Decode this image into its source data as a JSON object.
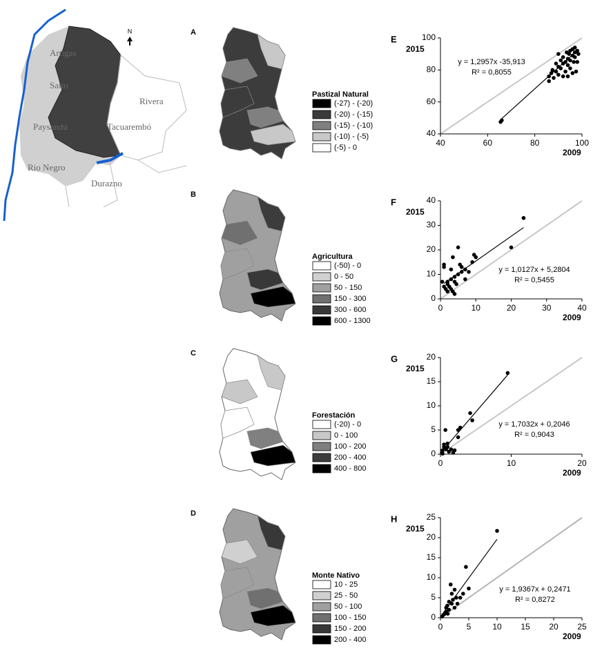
{
  "location_map": {
    "labels": [
      "Artigas",
      "Salto",
      "Paysandú",
      "Tacuarembó",
      "Rivera",
      "Rio Negro",
      "Durazno"
    ],
    "north": "N"
  },
  "maps": [
    {
      "letter": "A",
      "legend_title": "Pastizal Natural",
      "classes": [
        {
          "label": "(-27) - (-20)",
          "color": "#000000"
        },
        {
          "label": "(-20) - (-15)",
          "color": "#3c3c3c"
        },
        {
          "label": "(-15) - (-10)",
          "color": "#808080"
        },
        {
          "label": "(-10) - (-5)",
          "color": "#c8c8c8"
        },
        {
          "label": "(-5) - 0",
          "color": "#ffffff"
        }
      ]
    },
    {
      "letter": "B",
      "legend_title": "Agricultura",
      "classes": [
        {
          "label": "(-50) - 0",
          "color": "#ffffff"
        },
        {
          "label": "0 - 50",
          "color": "#d0d0d0"
        },
        {
          "label": "50 - 150",
          "color": "#a0a0a0"
        },
        {
          "label": "150 - 300",
          "color": "#707070"
        },
        {
          "label": "300 - 600",
          "color": "#383838"
        },
        {
          "label": "600 - 1300",
          "color": "#000000"
        }
      ]
    },
    {
      "letter": "C",
      "legend_title": "Forestación",
      "classes": [
        {
          "label": "(-20) - 0",
          "color": "#ffffff"
        },
        {
          "label": "0 - 100",
          "color": "#c8c8c8"
        },
        {
          "label": "100 - 200",
          "color": "#808080"
        },
        {
          "label": "200 - 400",
          "color": "#3c3c3c"
        },
        {
          "label": "400 - 800",
          "color": "#000000"
        }
      ]
    },
    {
      "letter": "D",
      "legend_title": "Monte Nativo",
      "classes": [
        {
          "label": "10 - 25",
          "color": "#ffffff"
        },
        {
          "label": "25 - 50",
          "color": "#d0d0d0"
        },
        {
          "label": "50 - 100",
          "color": "#a0a0a0"
        },
        {
          "label": "100 - 150",
          "color": "#707070"
        },
        {
          "label": "150 - 200",
          "color": "#383838"
        },
        {
          "label": "200 - 400",
          "color": "#000000"
        }
      ]
    }
  ],
  "chart_data": [
    {
      "type": "scatter",
      "letter": "E",
      "x_label": "2009",
      "y_label": "2015",
      "equation": "y = 1,2957x  -35,913",
      "r2": "R² = 0,8055",
      "x": [
        65.5,
        66,
        86,
        86,
        87,
        87.5,
        88,
        89,
        89,
        90,
        90,
        91,
        91,
        92,
        92,
        93,
        93,
        93.5,
        94,
        94,
        94.5,
        95,
        95,
        95,
        96,
        96,
        96.5,
        97,
        97,
        97,
        97.5,
        98,
        98,
        98.5,
        96,
        92,
        90,
        94
      ],
      "y": [
        47.5,
        48.5,
        73,
        76,
        78,
        80,
        75,
        79,
        84,
        82,
        77,
        86,
        81,
        88,
        84,
        85,
        79,
        91,
        87,
        83,
        90,
        92,
        86,
        81,
        89,
        93,
        85,
        91,
        94,
        88,
        79,
        92,
        85,
        90,
        78,
        76,
        90,
        76
      ],
      "color": "#000000",
      "trendline": {
        "x": [
          66,
          97
        ],
        "y": [
          49.6,
          90.8
        ]
      },
      "reference_color": "#c8c8c8",
      "xlim": [
        40,
        100
      ],
      "ylim": [
        40,
        100
      ],
      "xticks": [
        40,
        60,
        80,
        100
      ],
      "yticks": [
        40,
        60,
        80,
        100
      ]
    },
    {
      "type": "scatter",
      "letter": "F",
      "x_label": "2009",
      "y_label": "2015",
      "equation": "y = 1,0127x  + 5,2804",
      "r2": "R² = 0,5455",
      "x": [
        1,
        1,
        0.5,
        1,
        1.5,
        2,
        2,
        2.5,
        3,
        3,
        3,
        3.5,
        4,
        4,
        4.5,
        5,
        5,
        5.5,
        6,
        6,
        7,
        7,
        8,
        9,
        9.5,
        10,
        20,
        23.5,
        2,
        3.5,
        4
      ],
      "y": [
        14,
        13,
        7,
        5,
        4,
        3,
        6,
        5,
        4,
        8,
        12,
        17,
        2,
        9,
        6,
        10,
        21,
        14,
        11,
        13,
        8,
        12,
        11,
        15,
        18,
        17,
        21,
        33,
        7,
        3,
        7
      ],
      "color": "#000000",
      "trendline": {
        "x": [
          1,
          23.5
        ],
        "y": [
          6.3,
          29.1
        ]
      },
      "reference_color": "#c8c8c8",
      "xlim": [
        0,
        40
      ],
      "ylim": [
        0,
        40
      ],
      "xticks": [
        0,
        10,
        20,
        30,
        40
      ],
      "yticks": [
        0,
        10,
        20,
        30,
        40
      ]
    },
    {
      "type": "scatter",
      "letter": "G",
      "x_label": "2009",
      "y_label": "2015",
      "equation": "y = 1,7032x  + 0,2046",
      "r2": "R² = 0,9043",
      "x": [
        0.2,
        0.3,
        0.5,
        0.5,
        0.7,
        0.8,
        1,
        1,
        1.2,
        1.5,
        0.3,
        2.5,
        2.8,
        2.5,
        4.2,
        4.5,
        9.5,
        2,
        1.8
      ],
      "y": [
        0.3,
        0.8,
        1.5,
        2,
        5,
        1,
        2.2,
        1.5,
        0.5,
        1,
        0.1,
        5,
        5.5,
        3.5,
        8.5,
        7,
        16.8,
        0.8,
        0.3
      ],
      "color": "#000000",
      "trendline": {
        "x": [
          0.2,
          9.5
        ],
        "y": [
          0.55,
          16.4
        ]
      },
      "reference_color": "#c8c8c8",
      "xlim": [
        0,
        20
      ],
      "ylim": [
        0,
        20
      ],
      "xticks": [
        0,
        10,
        20
      ],
      "yticks": [
        0,
        5,
        10,
        15,
        20
      ]
    },
    {
      "type": "scatter",
      "letter": "H",
      "x_label": "2009",
      "y_label": "2015",
      "equation": "y = 1,9367x  + 0,2471",
      "r2": "R² = 0,8272",
      "x": [
        0.3,
        0.5,
        0.8,
        1,
        1,
        1.2,
        1.5,
        1.5,
        1.8,
        2,
        2,
        2.2,
        2.5,
        2.8,
        3,
        3.5,
        4,
        4.5,
        5,
        10,
        1.3,
        2.5
      ],
      "y": [
        0.3,
        0.7,
        1,
        1.5,
        2.5,
        3,
        4,
        2,
        8.3,
        6,
        3.5,
        4.5,
        7,
        5,
        3.5,
        5,
        6,
        12.7,
        7.3,
        21.7,
        1,
        2.5
      ],
      "color": "#000000",
      "trendline": {
        "x": [
          0.3,
          10
        ],
        "y": [
          0.83,
          19.6
        ]
      },
      "reference_color": "#b4b4b4",
      "xlim": [
        0,
        25
      ],
      "ylim": [
        0,
        25
      ],
      "xticks": [
        0,
        5,
        10,
        15,
        20,
        25
      ],
      "yticks": [
        0,
        5,
        10,
        15,
        20,
        25
      ]
    }
  ]
}
